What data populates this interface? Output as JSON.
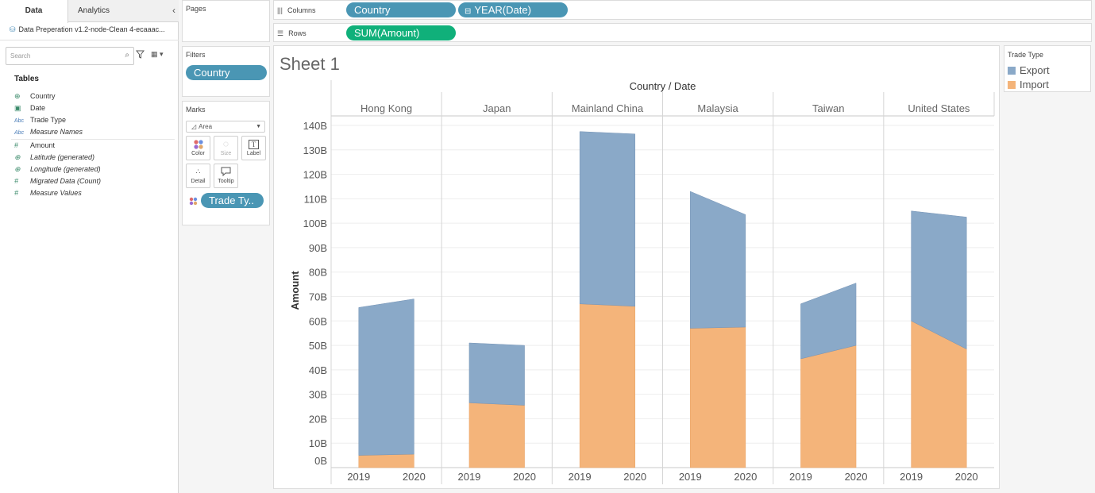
{
  "tabs": {
    "data": "Data",
    "analytics": "Analytics"
  },
  "datasource": {
    "name": "Data Preperation v1.2-node-Clean 4-ecaaac..."
  },
  "search": {
    "placeholder": "Search"
  },
  "tables_heading": "Tables",
  "fields": [
    {
      "type": "geo",
      "name": "Country"
    },
    {
      "type": "date",
      "name": "Date"
    },
    {
      "type": "Abc",
      "name": "Trade Type"
    },
    {
      "type": "Abc",
      "name": "Measure Names"
    },
    {
      "type": "#",
      "name": "Amount"
    },
    {
      "type": "geo",
      "name": "Latitude (generated)"
    },
    {
      "type": "geo",
      "name": "Longitude (generated)"
    },
    {
      "type": "#",
      "name": "Migrated Data (Count)"
    },
    {
      "type": "#",
      "name": "Measure Values"
    }
  ],
  "pages": {
    "label": "Pages"
  },
  "filters": {
    "label": "Filters",
    "pill": "Country"
  },
  "marks": {
    "label": "Marks",
    "type": "Area",
    "buttons": {
      "color": "Color",
      "size": "Size",
      "label": "Label",
      "detail": "Detail",
      "tooltip": "Tooltip"
    },
    "pill": "Trade Ty.."
  },
  "shelves": {
    "columns_label": "Columns",
    "rows_label": "Rows",
    "columns_pills": [
      "Country",
      "YEAR(Date)"
    ],
    "rows_pills": [
      "SUM(Amount)"
    ]
  },
  "legend": {
    "title": "Trade Type",
    "items": [
      {
        "name": "Export",
        "color": "#8aa9c8"
      },
      {
        "name": "Import",
        "color": "#f4b47a"
      }
    ]
  },
  "sheet": {
    "title": "Sheet 1"
  },
  "colors": {
    "accent_blue": "#4a96b4",
    "accent_green": "#10b07a",
    "export": "#8aa9c8",
    "import": "#f4b47a"
  },
  "chart_data": {
    "type": "area",
    "header": "Country / Date",
    "ylabel": "Amount",
    "ylim": [
      0,
      140
    ],
    "y_ticks": [
      "0B",
      "10B",
      "20B",
      "30B",
      "40B",
      "50B",
      "60B",
      "70B",
      "80B",
      "90B",
      "100B",
      "110B",
      "120B",
      "130B",
      "140B"
    ],
    "panes": [
      {
        "country": "Hong Kong",
        "years": [
          "2019",
          "2020"
        ],
        "import": [
          5,
          5.5
        ],
        "export": [
          60.5,
          63.5
        ]
      },
      {
        "country": "Japan",
        "years": [
          "2019",
          "2020"
        ],
        "import": [
          26.5,
          25.5
        ],
        "export": [
          24.5,
          24.5
        ]
      },
      {
        "country": "Mainland China",
        "years": [
          "2019",
          "2020"
        ],
        "import": [
          67,
          66
        ],
        "export": [
          70.5,
          70.5
        ]
      },
      {
        "country": "Malaysia",
        "years": [
          "2019",
          "2020"
        ],
        "import": [
          57,
          57.5
        ],
        "export": [
          56,
          46
        ]
      },
      {
        "country": "Taiwan",
        "years": [
          "2019",
          "2020"
        ],
        "import": [
          44.5,
          50
        ],
        "export": [
          22.5,
          25.5
        ]
      },
      {
        "country": "United States",
        "years": [
          "2019",
          "2020"
        ],
        "import": [
          60,
          48.5
        ],
        "export": [
          45,
          54
        ]
      }
    ]
  }
}
